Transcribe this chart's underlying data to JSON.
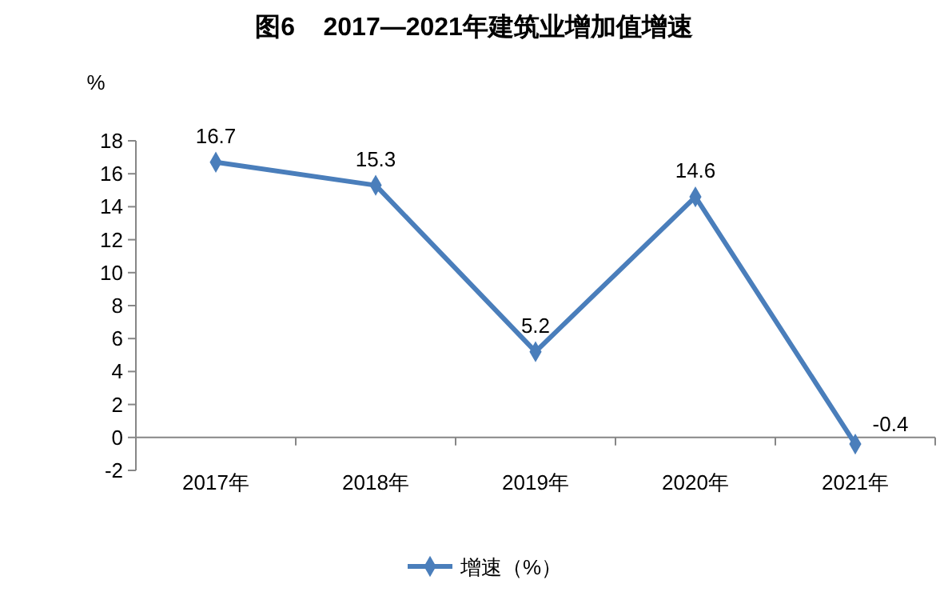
{
  "chart_data": {
    "type": "line",
    "title": "图6    2017—2021年建筑业增加值增速",
    "ylabel": "%",
    "categories": [
      "2017年",
      "2018年",
      "2019年",
      "2020年",
      "2021年"
    ],
    "series": [
      {
        "name": "增速（%）",
        "color": "#4a7ebb",
        "values": [
          16.7,
          15.3,
          5.2,
          14.6,
          -0.4
        ]
      }
    ],
    "ylim": [
      -2,
      18
    ],
    "yticks": [
      -2,
      0,
      2,
      4,
      6,
      8,
      10,
      12,
      14,
      16,
      18
    ],
    "data_labels": true,
    "marker": "diamond",
    "legend": "bottom",
    "grid": false
  }
}
